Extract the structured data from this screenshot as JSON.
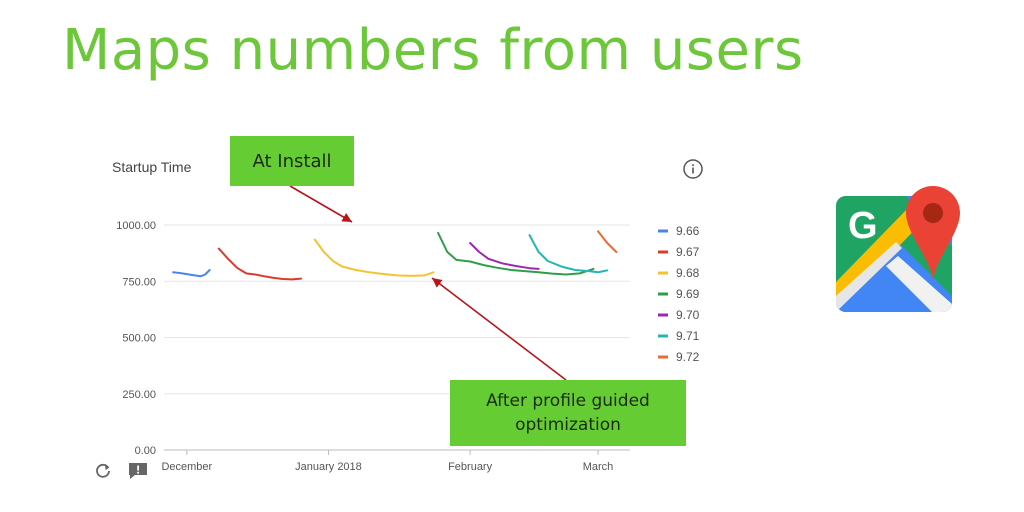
{
  "slide": {
    "title": "Maps numbers from users"
  },
  "callouts": {
    "at_install": "At Install",
    "after_pgo": "After profile guided optimization"
  },
  "chart_data": {
    "type": "line",
    "title": "Startup Time",
    "ylim": [
      0,
      1000
    ],
    "y_ticks": [
      "1000.00",
      "750.00",
      "500.00",
      "250.00",
      "0.00"
    ],
    "x_ticks": [
      "December",
      "January 2018",
      "February",
      "March"
    ],
    "x_tick_dates": [
      "2017-12-01",
      "2018-01-01",
      "2018-02-01",
      "2018-03-01"
    ],
    "xlim": [
      "2017-11-26",
      "2018-03-08"
    ],
    "grid": true,
    "legend": "right",
    "series": [
      {
        "name": "9.66",
        "color": "#4a86e8",
        "x": [
          "2017-11-28",
          "2017-11-30",
          "2017-12-02",
          "2017-12-04",
          "2017-12-05",
          "2017-12-06"
        ],
        "y": [
          790,
          785,
          778,
          772,
          780,
          800
        ]
      },
      {
        "name": "9.67",
        "color": "#db3b2b",
        "x": [
          "2017-12-08",
          "2017-12-10",
          "2017-12-12",
          "2017-12-14",
          "2017-12-16",
          "2017-12-18",
          "2017-12-20",
          "2017-12-22",
          "2017-12-24",
          "2017-12-26"
        ],
        "y": [
          895,
          850,
          810,
          785,
          780,
          772,
          765,
          760,
          758,
          762
        ]
      },
      {
        "name": "9.68",
        "color": "#f4c430",
        "x": [
          "2017-12-29",
          "2017-12-31",
          "2018-01-02",
          "2018-01-04",
          "2018-01-07",
          "2018-01-10",
          "2018-01-13",
          "2018-01-16",
          "2018-01-19",
          "2018-01-22",
          "2018-01-24"
        ],
        "y": [
          935,
          880,
          840,
          815,
          800,
          790,
          782,
          776,
          774,
          776,
          790
        ]
      },
      {
        "name": "9.69",
        "color": "#2e9e48",
        "x": [
          "2018-01-25",
          "2018-01-27",
          "2018-01-29",
          "2018-02-01",
          "2018-02-04",
          "2018-02-07",
          "2018-02-10",
          "2018-02-13",
          "2018-02-16",
          "2018-02-19",
          "2018-02-22",
          "2018-02-25",
          "2018-02-28"
        ],
        "y": [
          965,
          880,
          845,
          838,
          822,
          810,
          800,
          795,
          790,
          784,
          780,
          785,
          805
        ]
      },
      {
        "name": "9.70",
        "color": "#9c27b0",
        "x": [
          "2018-02-01",
          "2018-02-03",
          "2018-02-05",
          "2018-02-08",
          "2018-02-11",
          "2018-02-14",
          "2018-02-16"
        ],
        "y": [
          920,
          880,
          850,
          830,
          818,
          808,
          805
        ]
      },
      {
        "name": "9.71",
        "color": "#26b5b5",
        "x": [
          "2018-02-14",
          "2018-02-16",
          "2018-02-18",
          "2018-02-21",
          "2018-02-24",
          "2018-02-27",
          "2018-03-01",
          "2018-03-03"
        ],
        "y": [
          955,
          880,
          840,
          815,
          800,
          795,
          790,
          798
        ]
      },
      {
        "name": "9.72",
        "color": "#ee6a35",
        "x": [
          "2018-03-01",
          "2018-03-03",
          "2018-03-05"
        ],
        "y": [
          972,
          920,
          880
        ]
      }
    ]
  }
}
